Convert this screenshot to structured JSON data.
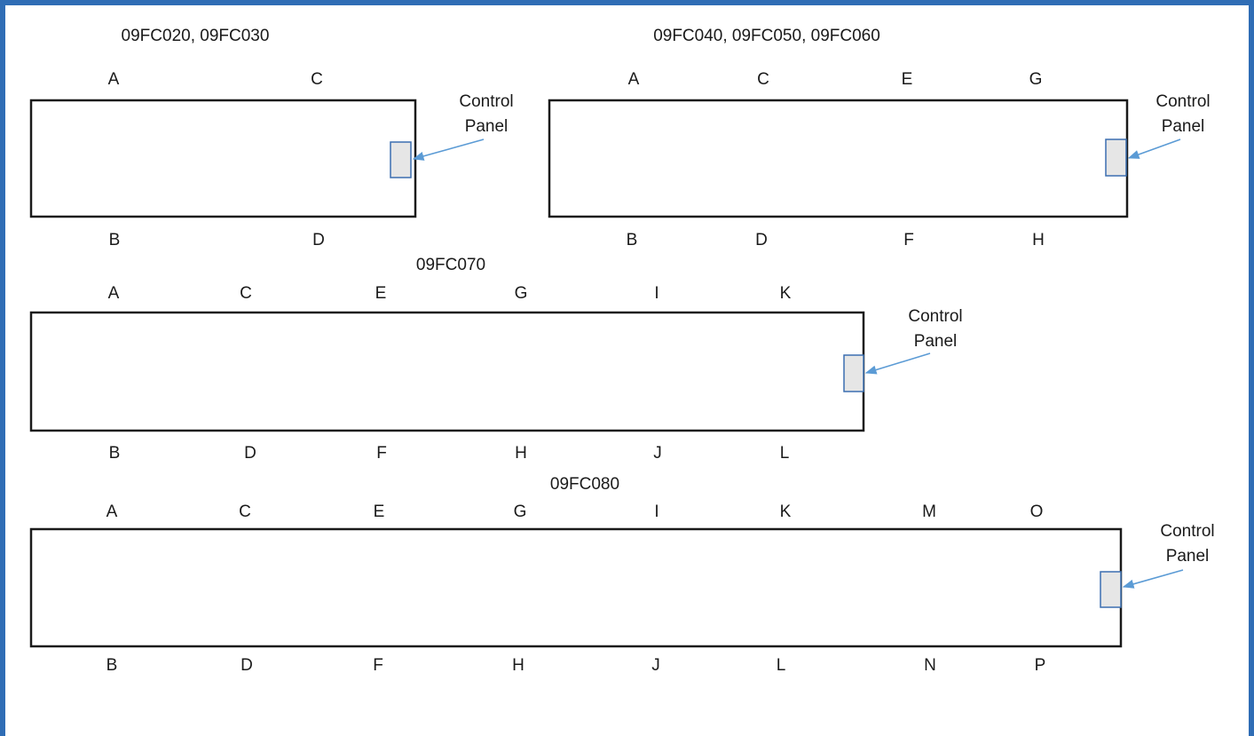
{
  "units": [
    {
      "id": "unit-020-030",
      "title": "09FC020, 09FC030",
      "top_labels": [
        "A",
        "C"
      ],
      "bottom_labels": [
        "B",
        "D"
      ],
      "panel_label": [
        "Control",
        "Panel"
      ]
    },
    {
      "id": "unit-040-060",
      "title": "09FC040, 09FC050, 09FC060",
      "top_labels": [
        "A",
        "C",
        "E",
        "G"
      ],
      "bottom_labels": [
        "B",
        "D",
        "F",
        "H"
      ],
      "panel_label": [
        "Control",
        "Panel"
      ]
    },
    {
      "id": "unit-070",
      "title": "09FC070",
      "top_labels": [
        "A",
        "C",
        "E",
        "G",
        "I",
        "K"
      ],
      "bottom_labels": [
        "B",
        "D",
        "F",
        "H",
        "J",
        "L"
      ],
      "panel_label": [
        "Control",
        "Panel"
      ]
    },
    {
      "id": "unit-080",
      "title": "09FC080",
      "top_labels": [
        "A",
        "C",
        "E",
        "G",
        "I",
        "K",
        "M",
        "O"
      ],
      "bottom_labels": [
        "B",
        "D",
        "F",
        "H",
        "J",
        "L",
        "N",
        "P"
      ],
      "panel_label": [
        "Control",
        "Panel"
      ]
    }
  ],
  "colors": {
    "frame_border": "#2f6db5",
    "panel_fill": "#e6e6e6",
    "panel_stroke": "#3b6fb0",
    "arrow": "#5b9bd5",
    "outline": "#1a1a1a"
  }
}
